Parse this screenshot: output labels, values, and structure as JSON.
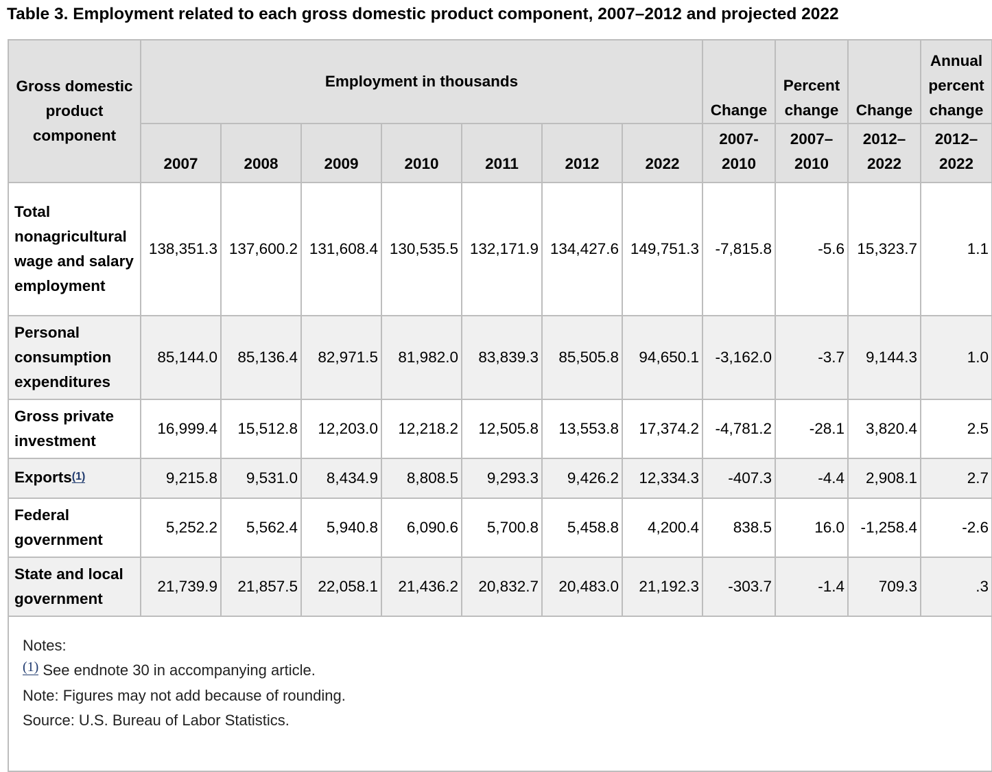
{
  "title": "Table 3. Employment related to each gross domestic product component, 2007–2012 and projected 2022",
  "header": {
    "stub": "Gross domestic product component",
    "group": "Employment in thousands",
    "change": "Change",
    "percent_change": "Percent change",
    "change2": "Change",
    "annual_percent_change": "Annual percent change",
    "years": [
      "2007",
      "2008",
      "2009",
      "2010",
      "2011",
      "2012",
      "2022"
    ],
    "periods": [
      "2007-2010",
      "2007–2010",
      "2012–2022",
      "2012–2022"
    ]
  },
  "rows": [
    {
      "label": "Total nonagricultural wage and salary employment",
      "footnote": "",
      "values": [
        "138,351.3",
        "137,600.2",
        "131,608.4",
        "130,535.5",
        "132,171.9",
        "134,427.6",
        "149,751.3",
        "-7,815.8",
        "-5.6",
        "15,323.7",
        "1.1"
      ]
    },
    {
      "label": "Personal consumption expenditures",
      "footnote": "",
      "values": [
        "85,144.0",
        "85,136.4",
        "82,971.5",
        "81,982.0",
        "83,839.3",
        "85,505.8",
        "94,650.1",
        "-3,162.0",
        "-3.7",
        "9,144.3",
        "1.0"
      ]
    },
    {
      "label": "Gross private investment",
      "footnote": "",
      "values": [
        "16,999.4",
        "15,512.8",
        "12,203.0",
        "12,218.2",
        "12,505.8",
        "13,553.8",
        "17,374.2",
        "-4,781.2",
        "-28.1",
        "3,820.4",
        "2.5"
      ]
    },
    {
      "label": "Exports",
      "footnote": "(1)",
      "values": [
        "9,215.8",
        "9,531.0",
        "8,434.9",
        "8,808.5",
        "9,293.3",
        "9,426.2",
        "12,334.3",
        "-407.3",
        "-4.4",
        "2,908.1",
        "2.7"
      ]
    },
    {
      "label": "Federal government",
      "footnote": "",
      "values": [
        "5,252.2",
        "5,562.4",
        "5,940.8",
        "6,090.6",
        "5,700.8",
        "5,458.8",
        "4,200.4",
        "838.5",
        "16.0",
        "-1,258.4",
        "-2.6"
      ]
    },
    {
      "label": "State and local government",
      "footnote": "",
      "values": [
        "21,739.9",
        "21,857.5",
        "22,058.1",
        "21,436.2",
        "20,832.7",
        "20,483.0",
        "21,192.3",
        "-303.7",
        "-1.4",
        "709.3",
        ".3"
      ]
    }
  ],
  "notes": {
    "heading": "Notes:",
    "footnote_marker": "(1)",
    "footnote_text": "See endnote 30 in accompanying article.",
    "rounding": "Note: Figures may not add because of rounding.",
    "source": "Source: U.S. Bureau of Labor Statistics."
  }
}
